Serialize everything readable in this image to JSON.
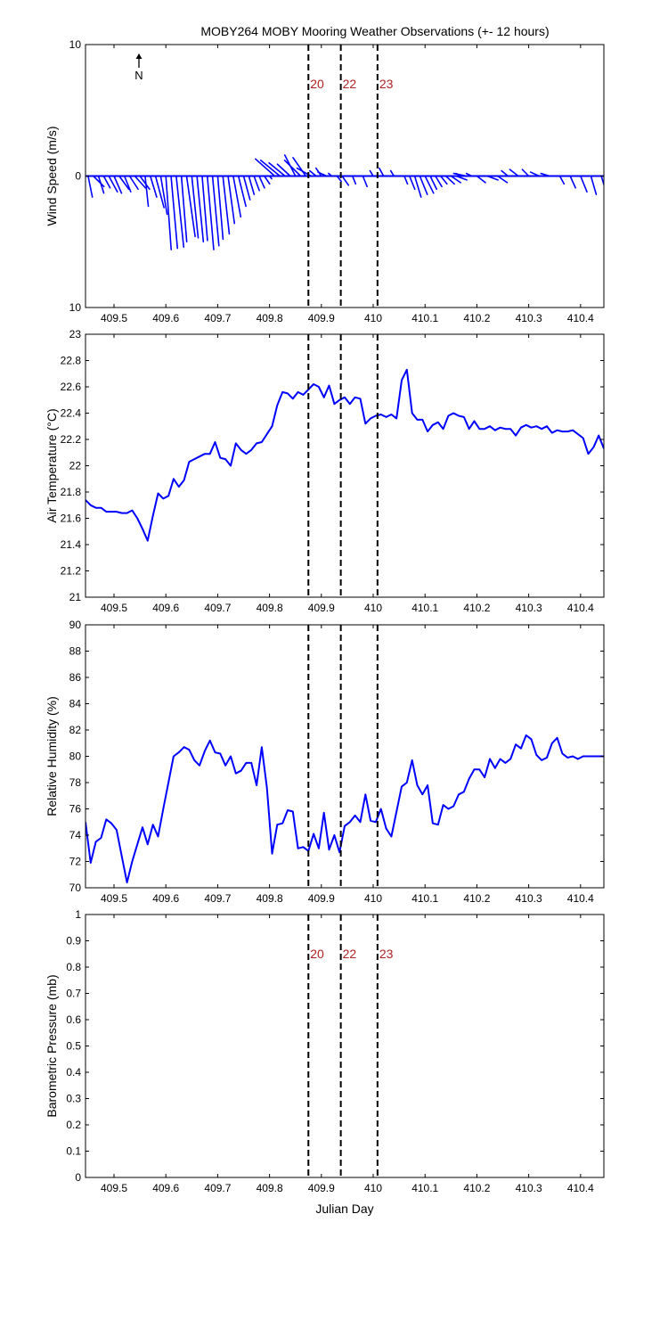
{
  "title": "MOBY264 MOBY Mooring Weather Observations (+- 12 hours)",
  "colors": {
    "series": "#0000ff",
    "marker_label": "#b22222",
    "axis": "#000000"
  },
  "x_axis": {
    "range": [
      409.445,
      410.445
    ],
    "ticks": [
      409.5,
      409.6,
      409.7,
      409.8,
      409.9,
      410,
      410.1,
      410.2,
      410.3,
      410.4
    ],
    "tick_labels": [
      "409.5",
      "409.6",
      "409.7",
      "409.8",
      "409.9",
      "410",
      "410.1",
      "410.2",
      "410.3",
      "410.4"
    ],
    "label": "Julian Day"
  },
  "markers": {
    "positions": [
      409.875,
      409.9375,
      410.0083
    ],
    "labels": [
      "20",
      "22",
      "23"
    ]
  },
  "north_indicator": "N",
  "chart_data": [
    {
      "type": "quiver",
      "ylabel": "Wind Speed (m/s)",
      "ylim": [
        -10,
        10
      ],
      "ytick_values": [
        10,
        0,
        -10
      ],
      "ytick_labels": [
        "10",
        "0",
        "10"
      ],
      "show_marker_labels": true,
      "x": [
        409.45,
        409.46,
        409.47,
        409.48,
        409.49,
        409.5,
        409.51,
        409.52,
        409.53,
        409.54,
        409.55,
        409.56,
        409.57,
        409.58,
        409.59,
        409.6,
        409.61,
        409.62,
        409.63,
        409.64,
        409.65,
        409.66,
        409.67,
        409.68,
        409.69,
        409.7,
        409.71,
        409.72,
        409.73,
        409.74,
        409.75,
        409.76,
        409.77,
        409.78,
        409.79,
        409.8,
        409.81,
        409.82,
        409.83,
        409.84,
        409.85,
        409.86,
        409.87,
        409.88,
        409.89,
        409.9,
        409.91,
        409.92,
        409.93,
        409.94,
        409.96,
        409.98,
        410.0,
        410.02,
        410.04,
        410.06,
        410.07,
        410.08,
        410.09,
        410.1,
        410.11,
        410.12,
        410.13,
        410.14,
        410.15,
        410.16,
        410.17,
        410.18,
        410.19,
        410.2,
        410.22,
        410.24,
        410.26,
        410.28,
        410.3,
        410.32,
        410.34,
        410.36,
        410.38,
        410.4,
        410.42,
        410.44
      ],
      "u": [
        0.4,
        1.0,
        0.5,
        0.6,
        0.8,
        0.7,
        0.9,
        0.6,
        0.8,
        1.0,
        0.9,
        0.3,
        0.6,
        0.8,
        0.6,
        0.5,
        0.6,
        0.7,
        0.5,
        0.8,
        0.6,
        0.6,
        0.5,
        0.6,
        0.6,
        0.5,
        0.6,
        0.6,
        0.7,
        0.7,
        0.6,
        0.5,
        0.5,
        0.5,
        0.5,
        0.2,
        -1.8,
        -1.8,
        -1.5,
        -1.2,
        -1.0,
        -1.5,
        -1.2,
        -1.3,
        -0.6,
        -0.5,
        -0.8,
        -0.3,
        0.4,
        0.6,
        0.3,
        0.4,
        -0.3,
        -0.4,
        -0.3,
        0.3,
        0.5,
        0.6,
        0.7,
        0.8,
        0.6,
        0.6,
        0.6,
        0.8,
        0.9,
        1.0,
        -0.5,
        -1.2,
        -0.5,
        0.8,
        1.0,
        0.9,
        -0.6,
        -0.8,
        -0.6,
        -0.8,
        -0.8,
        0.4,
        0.5,
        0.6,
        0.5,
        0.6
      ],
      "v": [
        -1.6,
        -0.8,
        -1.3,
        -0.9,
        -1.2,
        -1.3,
        -1.0,
        -1.2,
        -1.0,
        -0.9,
        -1.0,
        -2.3,
        -1.6,
        -2.4,
        -2.9,
        -5.6,
        -5.5,
        -5.4,
        -5.0,
        -4.6,
        -4.7,
        -5.0,
        -4.9,
        -5.6,
        -5.3,
        -4.8,
        -4.4,
        -3.6,
        -3.1,
        -2.3,
        -1.8,
        -1.4,
        -1.1,
        -0.9,
        -0.6,
        -0.2,
        1.3,
        1.2,
        1.0,
        0.9,
        1.6,
        1.2,
        1.4,
        0.6,
        0.4,
        0.6,
        0.3,
        0.2,
        -0.4,
        -0.7,
        -0.6,
        -0.8,
        0.4,
        0.6,
        0.4,
        -0.6,
        -1.0,
        -1.6,
        -1.4,
        -1.3,
        -1.0,
        -0.8,
        -0.6,
        -0.6,
        -0.5,
        -0.3,
        0.2,
        0.2,
        0.2,
        -0.5,
        -0.3,
        -0.5,
        0.4,
        0.5,
        0.5,
        0.3,
        0.2,
        -0.6,
        -0.9,
        -1.2,
        -1.4,
        -1.6
      ]
    },
    {
      "type": "line",
      "ylabel": "Air Temperature (°C)",
      "ylim": [
        21,
        23
      ],
      "ytick_values": [
        21,
        21.2,
        21.4,
        21.6,
        21.8,
        22,
        22.2,
        22.4,
        22.6,
        22.8,
        23
      ],
      "ytick_labels": [
        "21",
        "21.2",
        "21.4",
        "21.6",
        "21.8",
        "22",
        "22.2",
        "22.4",
        "22.6",
        "22.8",
        "23"
      ],
      "show_marker_labels": false,
      "x": [
        409.445,
        409.455,
        409.465,
        409.475,
        409.485,
        409.495,
        409.505,
        409.515,
        409.525,
        409.535,
        409.545,
        409.555,
        409.565,
        409.575,
        409.585,
        409.595,
        409.605,
        409.615,
        409.625,
        409.635,
        409.645,
        409.655,
        409.665,
        409.675,
        409.685,
        409.695,
        409.705,
        409.715,
        409.725,
        409.735,
        409.745,
        409.755,
        409.765,
        409.775,
        409.785,
        409.795,
        409.805,
        409.815,
        409.825,
        409.835,
        409.845,
        409.855,
        409.865,
        409.875,
        409.885,
        409.895,
        409.905,
        409.915,
        409.925,
        409.935,
        409.945,
        409.955,
        409.965,
        409.975,
        409.985,
        409.995,
        410.005,
        410.015,
        410.025,
        410.035,
        410.045,
        410.055,
        410.065,
        410.075,
        410.085,
        410.095,
        410.105,
        410.115,
        410.125,
        410.135,
        410.145,
        410.155,
        410.165,
        410.175,
        410.185,
        410.195,
        410.205,
        410.215,
        410.225,
        410.235,
        410.245,
        410.255,
        410.265,
        410.275,
        410.285,
        410.295,
        410.305,
        410.315,
        410.325,
        410.335,
        410.345,
        410.355,
        410.365,
        410.375,
        410.385,
        410.395,
        410.405,
        410.415,
        410.425,
        410.435,
        410.445
      ],
      "y": [
        21.74,
        21.7,
        21.68,
        21.68,
        21.65,
        21.65,
        21.65,
        21.64,
        21.64,
        21.66,
        21.6,
        21.52,
        21.43,
        21.62,
        21.79,
        21.75,
        21.77,
        21.9,
        21.84,
        21.89,
        22.03,
        22.05,
        22.07,
        22.09,
        22.09,
        22.18,
        22.06,
        22.05,
        22.0,
        22.17,
        22.12,
        22.09,
        22.12,
        22.17,
        22.18,
        22.24,
        22.3,
        22.46,
        22.56,
        22.55,
        22.51,
        22.56,
        22.54,
        22.58,
        22.62,
        22.6,
        22.52,
        22.61,
        22.47,
        22.5,
        22.52,
        22.47,
        22.52,
        22.51,
        22.32,
        22.36,
        22.38,
        22.39,
        22.37,
        22.39,
        22.36,
        22.65,
        22.73,
        22.4,
        22.35,
        22.35,
        22.26,
        22.31,
        22.33,
        22.28,
        22.38,
        22.4,
        22.38,
        22.37,
        22.28,
        22.34,
        22.28,
        22.28,
        22.3,
        22.27,
        22.29,
        22.28,
        22.28,
        22.23,
        22.29,
        22.31,
        22.29,
        22.3,
        22.28,
        22.3,
        22.25,
        22.27,
        22.26,
        22.26,
        22.27,
        22.24,
        22.21,
        22.09,
        22.14,
        22.23,
        22.13
      ]
    },
    {
      "type": "line",
      "ylabel": "Relative Humidity (%)",
      "ylim": [
        70,
        90
      ],
      "ytick_values": [
        70,
        72,
        74,
        76,
        78,
        80,
        82,
        84,
        86,
        88,
        90
      ],
      "ytick_labels": [
        "70",
        "72",
        "74",
        "76",
        "78",
        "80",
        "82",
        "84",
        "86",
        "88",
        "90"
      ],
      "show_marker_labels": false,
      "x": [
        409.445,
        409.455,
        409.465,
        409.475,
        409.485,
        409.495,
        409.505,
        409.515,
        409.525,
        409.535,
        409.545,
        409.555,
        409.565,
        409.575,
        409.585,
        409.595,
        409.605,
        409.615,
        409.625,
        409.635,
        409.645,
        409.655,
        409.665,
        409.675,
        409.685,
        409.695,
        409.705,
        409.715,
        409.725,
        409.735,
        409.745,
        409.755,
        409.765,
        409.775,
        409.785,
        409.795,
        409.805,
        409.815,
        409.825,
        409.835,
        409.845,
        409.855,
        409.865,
        409.875,
        409.885,
        409.895,
        409.905,
        409.915,
        409.925,
        409.935,
        409.945,
        409.955,
        409.965,
        409.975,
        409.985,
        409.995,
        410.005,
        410.015,
        410.025,
        410.035,
        410.045,
        410.055,
        410.065,
        410.075,
        410.085,
        410.095,
        410.105,
        410.115,
        410.125,
        410.135,
        410.145,
        410.155,
        410.165,
        410.175,
        410.185,
        410.195,
        410.205,
        410.215,
        410.225,
        410.235,
        410.245,
        410.255,
        410.265,
        410.275,
        410.285,
        410.295,
        410.305,
        410.315,
        410.325,
        410.335,
        410.345,
        410.355,
        410.365,
        410.375,
        410.385,
        410.395,
        410.405,
        410.415,
        410.425,
        410.435,
        410.445
      ],
      "y": [
        75.0,
        71.9,
        73.5,
        73.8,
        75.2,
        74.9,
        74.4,
        72.4,
        70.4,
        72.0,
        73.3,
        74.6,
        73.3,
        74.8,
        73.9,
        76.0,
        78.0,
        80.0,
        80.3,
        80.7,
        80.5,
        79.7,
        79.3,
        80.4,
        81.2,
        80.3,
        80.2,
        79.3,
        80.0,
        78.7,
        78.9,
        79.5,
        79.5,
        77.8,
        80.7,
        77.6,
        72.6,
        74.8,
        74.9,
        75.9,
        75.8,
        73.0,
        73.1,
        72.8,
        74.1,
        73.0,
        75.7,
        72.9,
        74.0,
        72.7,
        74.7,
        75.0,
        75.5,
        75.0,
        77.1,
        75.1,
        75.0,
        76.0,
        74.5,
        73.9,
        75.8,
        77.7,
        78.0,
        79.7,
        77.8,
        77.1,
        77.8,
        74.9,
        74.8,
        76.3,
        76.0,
        76.2,
        77.1,
        77.3,
        78.3,
        79.0,
        79.0,
        78.4,
        79.8,
        79.1,
        79.8,
        79.5,
        79.8,
        80.9,
        80.6,
        81.6,
        81.3,
        80.1,
        79.7,
        79.9,
        81.0,
        81.4,
        80.2,
        79.9,
        80.0,
        79.8,
        80.0,
        80.0,
        80.0,
        80.0,
        80.0
      ]
    },
    {
      "type": "line",
      "ylabel": "Barometric Pressure (mb)",
      "ylim": [
        0,
        1
      ],
      "ytick_values": [
        0,
        0.1,
        0.2,
        0.3,
        0.4,
        0.5,
        0.6,
        0.7,
        0.8,
        0.9,
        1
      ],
      "ytick_labels": [
        "0",
        "0.1",
        "0.2",
        "0.3",
        "0.4",
        "0.5",
        "0.6",
        "0.7",
        "0.8",
        "0.9",
        "1"
      ],
      "show_marker_labels": true,
      "show_xlabel": true,
      "x": [],
      "y": []
    }
  ]
}
